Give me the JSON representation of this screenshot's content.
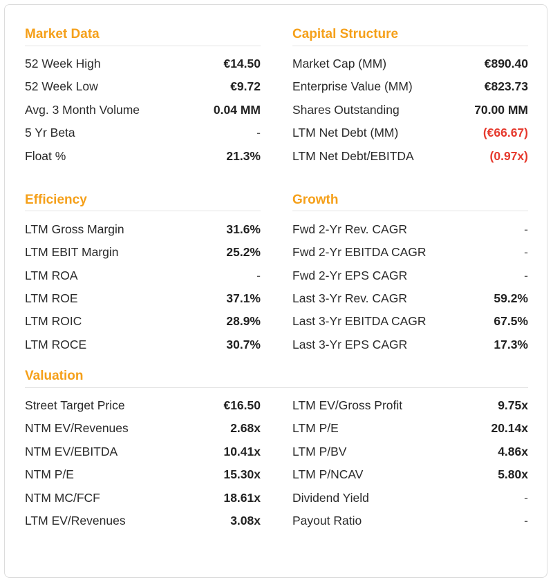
{
  "market_data": {
    "title": "Market Data",
    "rows": [
      {
        "label": "52 Week High",
        "value": "€14.50"
      },
      {
        "label": "52 Week Low",
        "value": "€9.72"
      },
      {
        "label": "Avg. 3 Month Volume",
        "value": "0.04 MM"
      },
      {
        "label": "5 Yr Beta",
        "value": "-"
      },
      {
        "label": "Float %",
        "value": "21.3%"
      }
    ]
  },
  "capital_structure": {
    "title": "Capital Structure",
    "rows": [
      {
        "label": "Market Cap (MM)",
        "value": "€890.40"
      },
      {
        "label": "Enterprise Value (MM)",
        "value": "€823.73"
      },
      {
        "label": "Shares Outstanding",
        "value": "70.00 MM"
      },
      {
        "label": "LTM Net Debt (MM)",
        "value": "(€66.67)"
      },
      {
        "label": "LTM Net Debt/EBITDA",
        "value": "(0.97x)"
      }
    ]
  },
  "efficiency": {
    "title": "Efficiency",
    "rows": [
      {
        "label": "LTM Gross Margin",
        "value": "31.6%"
      },
      {
        "label": "LTM EBIT Margin",
        "value": "25.2%"
      },
      {
        "label": "LTM ROA",
        "value": "-"
      },
      {
        "label": "LTM ROE",
        "value": "37.1%"
      },
      {
        "label": "LTM ROIC",
        "value": "28.9%"
      },
      {
        "label": "LTM ROCE",
        "value": "30.7%"
      }
    ]
  },
  "growth": {
    "title": "Growth",
    "rows": [
      {
        "label": "Fwd 2-Yr Rev. CAGR",
        "value": "-"
      },
      {
        "label": "Fwd 2-Yr EBITDA CAGR",
        "value": "-"
      },
      {
        "label": "Fwd 2-Yr EPS CAGR",
        "value": "-"
      },
      {
        "label": "Last 3-Yr Rev. CAGR",
        "value": "59.2%"
      },
      {
        "label": "Last 3-Yr EBITDA CAGR",
        "value": "67.5%"
      },
      {
        "label": "Last 3-Yr EPS CAGR",
        "value": "17.3%"
      }
    ]
  },
  "valuation": {
    "title": "Valuation",
    "left_rows": [
      {
        "label": "Street Target Price",
        "value": "€16.50"
      },
      {
        "label": "NTM EV/Revenues",
        "value": "2.68x"
      },
      {
        "label": "NTM EV/EBITDA",
        "value": "10.41x"
      },
      {
        "label": "NTM P/E",
        "value": "15.30x"
      },
      {
        "label": "NTM MC/FCF",
        "value": "18.61x"
      },
      {
        "label": "LTM EV/Revenues",
        "value": "3.08x"
      }
    ],
    "right_rows": [
      {
        "label": "LTM EV/Gross Profit",
        "value": "9.75x"
      },
      {
        "label": "LTM P/E",
        "value": "20.14x"
      },
      {
        "label": "LTM P/BV",
        "value": "4.86x"
      },
      {
        "label": "LTM P/NCAV",
        "value": "5.80x"
      },
      {
        "label": "Dividend Yield",
        "value": "-"
      },
      {
        "label": "Payout Ratio",
        "value": "-"
      }
    ]
  },
  "colors": {
    "section_title": "#f5a01a",
    "negative_value": "#e63a2e"
  }
}
